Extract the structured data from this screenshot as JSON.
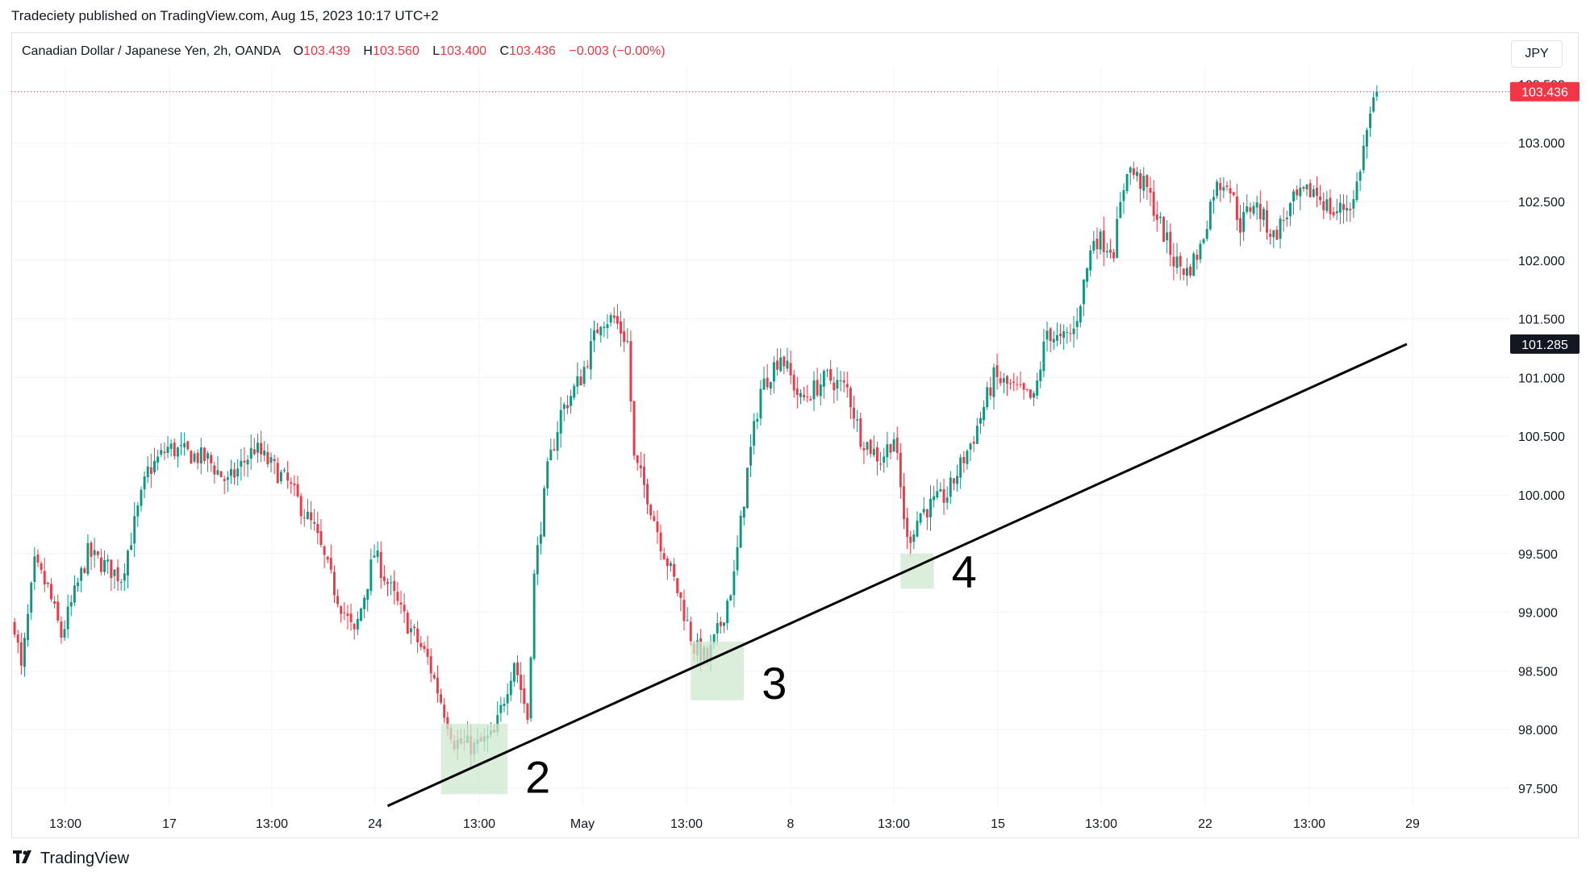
{
  "publisher_line": "Tradeciety published on TradingView.com, Aug 15, 2023 10:17 UTC+2",
  "legend": {
    "symbol": "Canadian Dollar / Japanese Yen, 2h, OANDA",
    "o_label": "O",
    "o_value": "103.439",
    "h_label": "H",
    "h_value": "103.560",
    "l_label": "L",
    "l_value": "103.400",
    "c_label": "C",
    "c_value": "103.436",
    "change": "−0.003 (−0.00%)"
  },
  "currency_button": "JPY",
  "footer": {
    "logo_text": "TradingView",
    "logo_icon": "tradingview-logo-icon"
  },
  "colors": {
    "up": "#089981",
    "down": "#f23645",
    "price_label": "#f23645",
    "marker_label": "#131722",
    "zone": "#cfe8cf"
  },
  "chart_data": {
    "type": "candlestick",
    "symbol": "CADJPY",
    "interval": "2h",
    "ylim": [
      97.3,
      103.7
    ],
    "y_ticks": [
      97.5,
      98.0,
      98.5,
      99.0,
      99.5,
      100.0,
      100.5,
      101.0,
      101.5,
      102.0,
      102.5,
      103.0
    ],
    "y_tick_labels": [
      "97.500",
      "98.000",
      "98.500",
      "99.000",
      "99.500",
      "100.000",
      "100.500",
      "101.000",
      "101.500",
      "102.000",
      "102.500",
      "103.000"
    ],
    "x_tick_labels": [
      "13:00",
      "17",
      "13:00",
      "24",
      "13:00",
      "May",
      "13:00",
      "8",
      "13:00",
      "15",
      "13:00",
      "22",
      "13:00",
      "29"
    ],
    "price_path": [
      [
        0,
        98.9
      ],
      [
        2,
        98.5
      ],
      [
        6,
        99.4
      ],
      [
        10,
        99.2
      ],
      [
        14,
        98.8
      ],
      [
        22,
        99.5
      ],
      [
        32,
        99.3
      ],
      [
        40,
        100.2
      ],
      [
        46,
        100.4
      ],
      [
        58,
        100.3
      ],
      [
        64,
        100.1
      ],
      [
        72,
        100.4
      ],
      [
        82,
        100.1
      ],
      [
        90,
        99.7
      ],
      [
        96,
        99.2
      ],
      [
        102,
        98.8
      ],
      [
        108,
        99.5
      ],
      [
        116,
        99.0
      ],
      [
        124,
        98.6
      ],
      [
        132,
        97.9
      ],
      [
        138,
        97.85
      ],
      [
        144,
        97.95
      ],
      [
        150,
        98.6
      ],
      [
        154,
        98.1
      ],
      [
        156,
        99.3
      ],
      [
        160,
        100.2
      ],
      [
        164,
        100.7
      ],
      [
        170,
        101.0
      ],
      [
        176,
        101.5
      ],
      [
        180,
        101.5
      ],
      [
        184,
        101.3
      ],
      [
        186,
        100.3
      ],
      [
        190,
        100.0
      ],
      [
        194,
        99.6
      ],
      [
        200,
        99.1
      ],
      [
        204,
        98.7
      ],
      [
        208,
        98.6
      ],
      [
        212,
        98.9
      ],
      [
        216,
        99.3
      ],
      [
        220,
        100.2
      ],
      [
        224,
        100.9
      ],
      [
        230,
        101.2
      ],
      [
        236,
        100.8
      ],
      [
        244,
        101.0
      ],
      [
        250,
        100.9
      ],
      [
        254,
        100.5
      ],
      [
        260,
        100.3
      ],
      [
        264,
        100.5
      ],
      [
        268,
        99.6
      ],
      [
        272,
        99.85
      ],
      [
        280,
        100.0
      ],
      [
        288,
        100.5
      ],
      [
        294,
        101.0
      ],
      [
        300,
        100.9
      ],
      [
        306,
        100.8
      ],
      [
        310,
        101.4
      ],
      [
        314,
        101.3
      ],
      [
        318,
        101.4
      ],
      [
        324,
        102.2
      ],
      [
        330,
        102.1
      ],
      [
        334,
        102.8
      ],
      [
        340,
        102.6
      ],
      [
        344,
        102.3
      ],
      [
        348,
        102.0
      ],
      [
        352,
        101.9
      ],
      [
        356,
        102.1
      ],
      [
        360,
        102.6
      ],
      [
        364,
        102.7
      ],
      [
        368,
        102.3
      ],
      [
        372,
        102.5
      ],
      [
        378,
        102.2
      ],
      [
        384,
        102.5
      ],
      [
        390,
        102.6
      ],
      [
        396,
        102.4
      ],
      [
        402,
        102.5
      ],
      [
        406,
        103.1
      ],
      [
        409,
        103.436
      ]
    ],
    "last_price": "103.436",
    "partially_visible_price": "103.500",
    "trendline_end_price": "101.285",
    "trendline": {
      "start": {
        "index": 112,
        "price": 97.35
      },
      "end": {
        "index": 418,
        "price": 101.285
      }
    },
    "markers": [
      {
        "label": "2",
        "index_from": 128,
        "index_to": 148,
        "price_low": 97.45,
        "price_high": 98.05
      },
      {
        "label": "3",
        "index_from": 203,
        "index_to": 219,
        "price_low": 98.25,
        "price_high": 98.75
      },
      {
        "label": "4",
        "index_from": 266,
        "index_to": 276,
        "price_low": 99.2,
        "price_high": 99.5
      }
    ]
  }
}
